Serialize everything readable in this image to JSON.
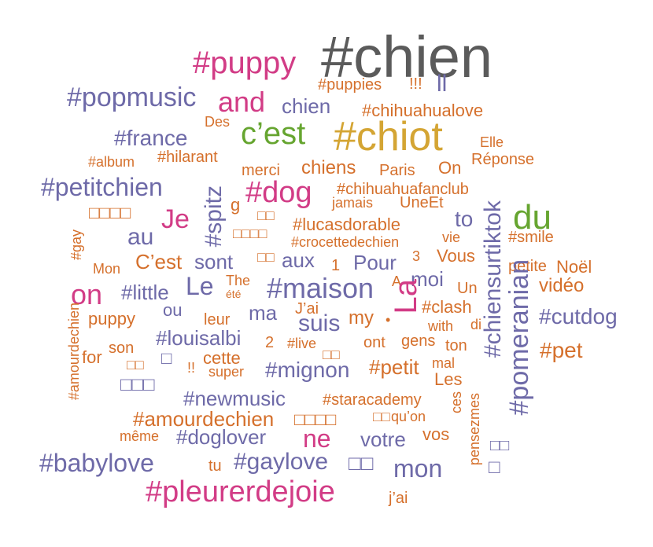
{
  "colors": {
    "gray": "#5b5b5b",
    "purple": "#6e6aa8",
    "orange": "#d5702c",
    "pink": "#d23c86",
    "green": "#66a530",
    "gold": "#d4a534"
  },
  "words": [
    {
      "text": "#chien",
      "color": "gray"
    },
    {
      "text": "#puppy",
      "color": "pink"
    },
    {
      "text": "#puppies",
      "color": "orange"
    },
    {
      "text": "!!!",
      "color": "orange"
    },
    {
      "text": "ll",
      "color": "purple"
    },
    {
      "text": "#popmusic",
      "color": "purple"
    },
    {
      "text": "and",
      "color": "pink"
    },
    {
      "text": "chien",
      "color": "purple"
    },
    {
      "text": "#chihuahualove",
      "color": "orange"
    },
    {
      "text": "Des",
      "color": "orange"
    },
    {
      "text": "c’est",
      "color": "green"
    },
    {
      "text": "#chiot",
      "color": "gold"
    },
    {
      "text": "#france",
      "color": "purple"
    },
    {
      "text": "Elle",
      "color": "orange"
    },
    {
      "text": "#album",
      "color": "orange"
    },
    {
      "text": "#hilarant",
      "color": "orange"
    },
    {
      "text": "Réponse",
      "color": "orange"
    },
    {
      "text": "merci",
      "color": "orange"
    },
    {
      "text": "chiens",
      "color": "orange"
    },
    {
      "text": "Paris",
      "color": "orange"
    },
    {
      "text": "On",
      "color": "orange"
    },
    {
      "text": "#petitchien",
      "color": "purple"
    },
    {
      "text": "#dog",
      "color": "pink"
    },
    {
      "text": "#chihuahuafanclub",
      "color": "orange"
    },
    {
      "text": "g",
      "color": "orange"
    },
    {
      "text": "jamais",
      "color": "orange"
    },
    {
      "text": "UneEt",
      "color": "orange"
    },
    {
      "text": "du",
      "color": "green"
    },
    {
      "text": "□□□□",
      "color": "orange"
    },
    {
      "text": "#spitz",
      "color": "purple"
    },
    {
      "text": "□□",
      "color": "orange"
    },
    {
      "text": "Je",
      "color": "pink"
    },
    {
      "text": "#lucasdorable",
      "color": "orange"
    },
    {
      "text": "to",
      "color": "purple"
    },
    {
      "text": "#chiensurtiktok",
      "color": "purple"
    },
    {
      "text": "□□□□",
      "color": "orange"
    },
    {
      "text": "#crocettedechien",
      "color": "orange"
    },
    {
      "text": "vie",
      "color": "orange"
    },
    {
      "text": "#smile",
      "color": "orange"
    },
    {
      "text": "au",
      "color": "purple"
    },
    {
      "text": "#gay",
      "color": "orange"
    },
    {
      "text": "C’est",
      "color": "orange"
    },
    {
      "text": "sont",
      "color": "purple"
    },
    {
      "text": "□□",
      "color": "orange"
    },
    {
      "text": "aux",
      "color": "purple"
    },
    {
      "text": "1",
      "color": "orange"
    },
    {
      "text": "Pour",
      "color": "purple"
    },
    {
      "text": "3",
      "color": "orange"
    },
    {
      "text": "Vous",
      "color": "orange"
    },
    {
      "text": "petite",
      "color": "orange"
    },
    {
      "text": "Noël",
      "color": "orange"
    },
    {
      "text": "Mon",
      "color": "orange"
    },
    {
      "text": "on",
      "color": "pink"
    },
    {
      "text": "#little",
      "color": "purple"
    },
    {
      "text": "Le",
      "color": "purple"
    },
    {
      "text": "The",
      "color": "orange"
    },
    {
      "text": "été",
      "color": "orange"
    },
    {
      "text": "#maison",
      "color": "purple"
    },
    {
      "text": "A",
      "color": "orange"
    },
    {
      "text": "moi",
      "color": "purple"
    },
    {
      "text": "La",
      "color": "pink"
    },
    {
      "text": "Un",
      "color": "orange"
    },
    {
      "text": "vidéo",
      "color": "orange"
    },
    {
      "text": "#pomeranian",
      "color": "purple"
    },
    {
      "text": "#amourdechien",
      "color": "orange"
    },
    {
      "text": "puppy",
      "color": "orange"
    },
    {
      "text": "ou",
      "color": "purple"
    },
    {
      "text": "leur",
      "color": "orange"
    },
    {
      "text": "ma",
      "color": "purple"
    },
    {
      "text": "J’ai",
      "color": "orange"
    },
    {
      "text": "suis",
      "color": "purple"
    },
    {
      "text": "my",
      "color": "orange"
    },
    {
      "text": "•",
      "color": "orange"
    },
    {
      "text": "#clash",
      "color": "orange"
    },
    {
      "text": "with",
      "color": "orange"
    },
    {
      "text": "di",
      "color": "orange"
    },
    {
      "text": "#cutdog",
      "color": "purple"
    },
    {
      "text": "#louisalbi",
      "color": "purple"
    },
    {
      "text": "2",
      "color": "orange"
    },
    {
      "text": "#live",
      "color": "orange"
    },
    {
      "text": "ont",
      "color": "orange"
    },
    {
      "text": "gens",
      "color": "orange"
    },
    {
      "text": "ton",
      "color": "orange"
    },
    {
      "text": "#pet",
      "color": "orange"
    },
    {
      "text": "son",
      "color": "orange"
    },
    {
      "text": "for",
      "color": "orange"
    },
    {
      "text": "□□",
      "color": "orange"
    },
    {
      "text": "□",
      "color": "purple"
    },
    {
      "text": "!!",
      "color": "orange"
    },
    {
      "text": "cette",
      "color": "orange"
    },
    {
      "text": "super",
      "color": "orange"
    },
    {
      "text": "#mignon",
      "color": "purple"
    },
    {
      "text": "□□",
      "color": "orange"
    },
    {
      "text": "#petit",
      "color": "orange"
    },
    {
      "text": "mal",
      "color": "orange"
    },
    {
      "text": "Les",
      "color": "orange"
    },
    {
      "text": "□□□",
      "color": "purple"
    },
    {
      "text": "#newmusic",
      "color": "purple"
    },
    {
      "text": "#staracademy",
      "color": "orange"
    },
    {
      "text": "ces",
      "color": "orange"
    },
    {
      "text": "#amourdechien",
      "color": "orange"
    },
    {
      "text": "□□□□",
      "color": "orange"
    },
    {
      "text": "□□",
      "color": "orange"
    },
    {
      "text": "qu’on",
      "color": "orange"
    },
    {
      "text": "pensezmes",
      "color": "orange"
    },
    {
      "text": "même",
      "color": "orange"
    },
    {
      "text": "#doglover",
      "color": "purple"
    },
    {
      "text": "ne",
      "color": "pink"
    },
    {
      "text": "votre",
      "color": "purple"
    },
    {
      "text": "vos",
      "color": "orange"
    },
    {
      "text": "□□",
      "color": "purple"
    },
    {
      "text": "#babylove",
      "color": "purple"
    },
    {
      "text": "tu",
      "color": "orange"
    },
    {
      "text": "#gaylove",
      "color": "purple"
    },
    {
      "text": "□□",
      "color": "purple"
    },
    {
      "text": "mon",
      "color": "purple"
    },
    {
      "text": "□",
      "color": "purple"
    },
    {
      "text": "#pleurerdejoie",
      "color": "pink"
    },
    {
      "text": "j’ai",
      "color": "orange"
    }
  ]
}
